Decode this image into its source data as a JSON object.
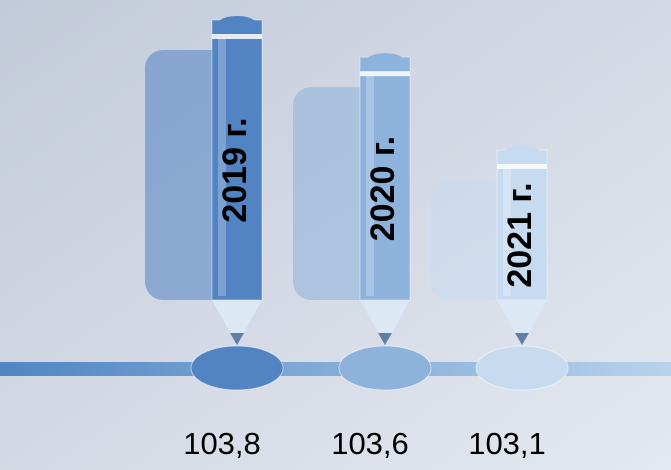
{
  "chart_data": {
    "type": "pencil-bar",
    "categories": [
      "2019 г.",
      "2020 г.",
      "2021 г."
    ],
    "values": [
      103.8,
      103.6,
      103.1
    ],
    "value_labels": [
      "103,8",
      "103,6",
      "103,1"
    ],
    "colors": [
      "#5283c2",
      "#8db2dc",
      "#c6dbf0"
    ]
  }
}
